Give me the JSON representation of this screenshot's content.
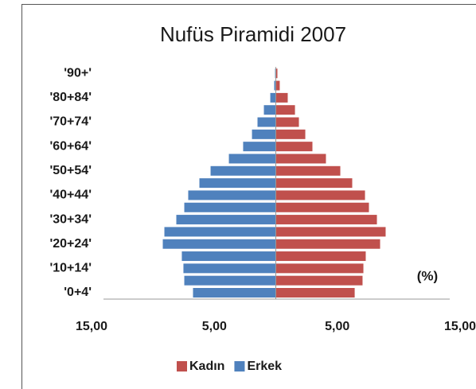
{
  "chart_data": {
    "type": "pyramid",
    "title": "Nufüs Piramidi 2007",
    "categories": [
      "'0+4'",
      null,
      "'10+14'",
      null,
      "'20+24'",
      null,
      "'30+34'",
      null,
      "'40+44'",
      null,
      "'50+54'",
      null,
      "'60+64'",
      null,
      "'70+74'",
      null,
      "'80+84'",
      null,
      "'90+'"
    ],
    "series": [
      {
        "name": "Kadın",
        "color": "#c0504d",
        "side": "right",
        "values": [
          6.42,
          7.06,
          7.13,
          7.32,
          8.49,
          8.94,
          8.23,
          7.58,
          7.26,
          6.22,
          5.25,
          4.08,
          2.98,
          2.4,
          1.88,
          1.56,
          0.97,
          0.32,
          0.13
        ]
      },
      {
        "name": "Erkek",
        "color": "#4f81bd",
        "side": "left",
        "values": [
          6.74,
          7.45,
          7.52,
          7.65,
          9.2,
          9.07,
          8.1,
          7.45,
          7.13,
          6.22,
          5.31,
          3.82,
          2.66,
          1.94,
          1.49,
          0.97,
          0.45,
          0.13,
          0.06
        ]
      }
    ],
    "xlim": [
      -15,
      15
    ],
    "xticks": [
      {
        "value": -15,
        "label": "15,00"
      },
      {
        "value": -5,
        "label": "5,00"
      },
      {
        "value": 5,
        "label": "5,00"
      },
      {
        "value": 15,
        "label": "15,00"
      }
    ],
    "annotation": "(%)",
    "legend": "bottom"
  }
}
